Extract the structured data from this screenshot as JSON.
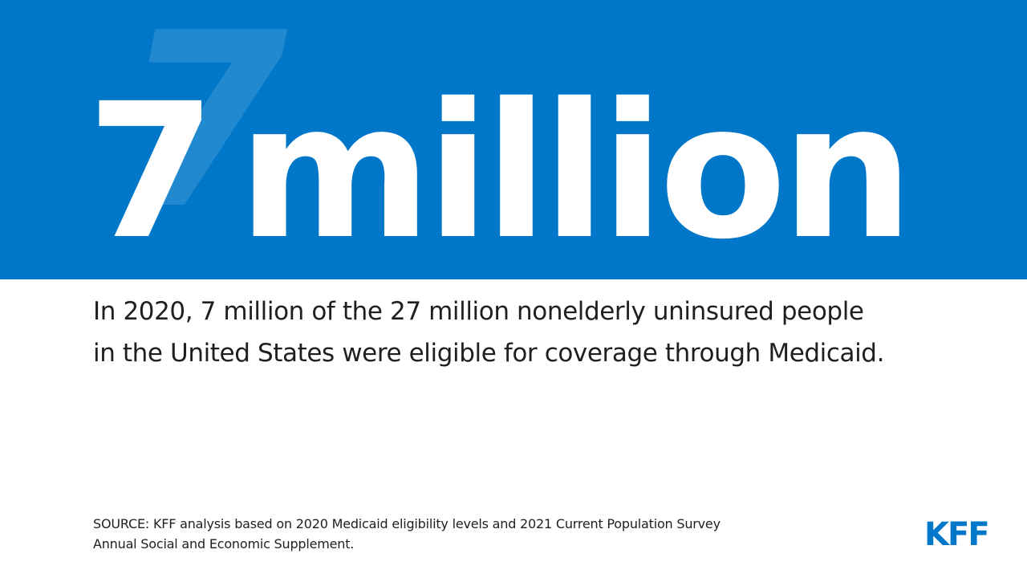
{
  "banner": {
    "background_color": "#0077c8",
    "number": "7",
    "unit": "million",
    "ghost_number": "7"
  },
  "description": {
    "line1": "In 2020, 7 million of the 27 million nonelderly uninsured people",
    "line2": "in the United States were eligible for coverage through Medicaid."
  },
  "source": {
    "line1": "SOURCE: KFF analysis based on 2020 Medicaid eligibility levels and 2021 Current Population Survey",
    "line2": "Annual Social and Economic Supplement."
  },
  "logo": {
    "text": "KFF",
    "color": "#0077c8"
  }
}
